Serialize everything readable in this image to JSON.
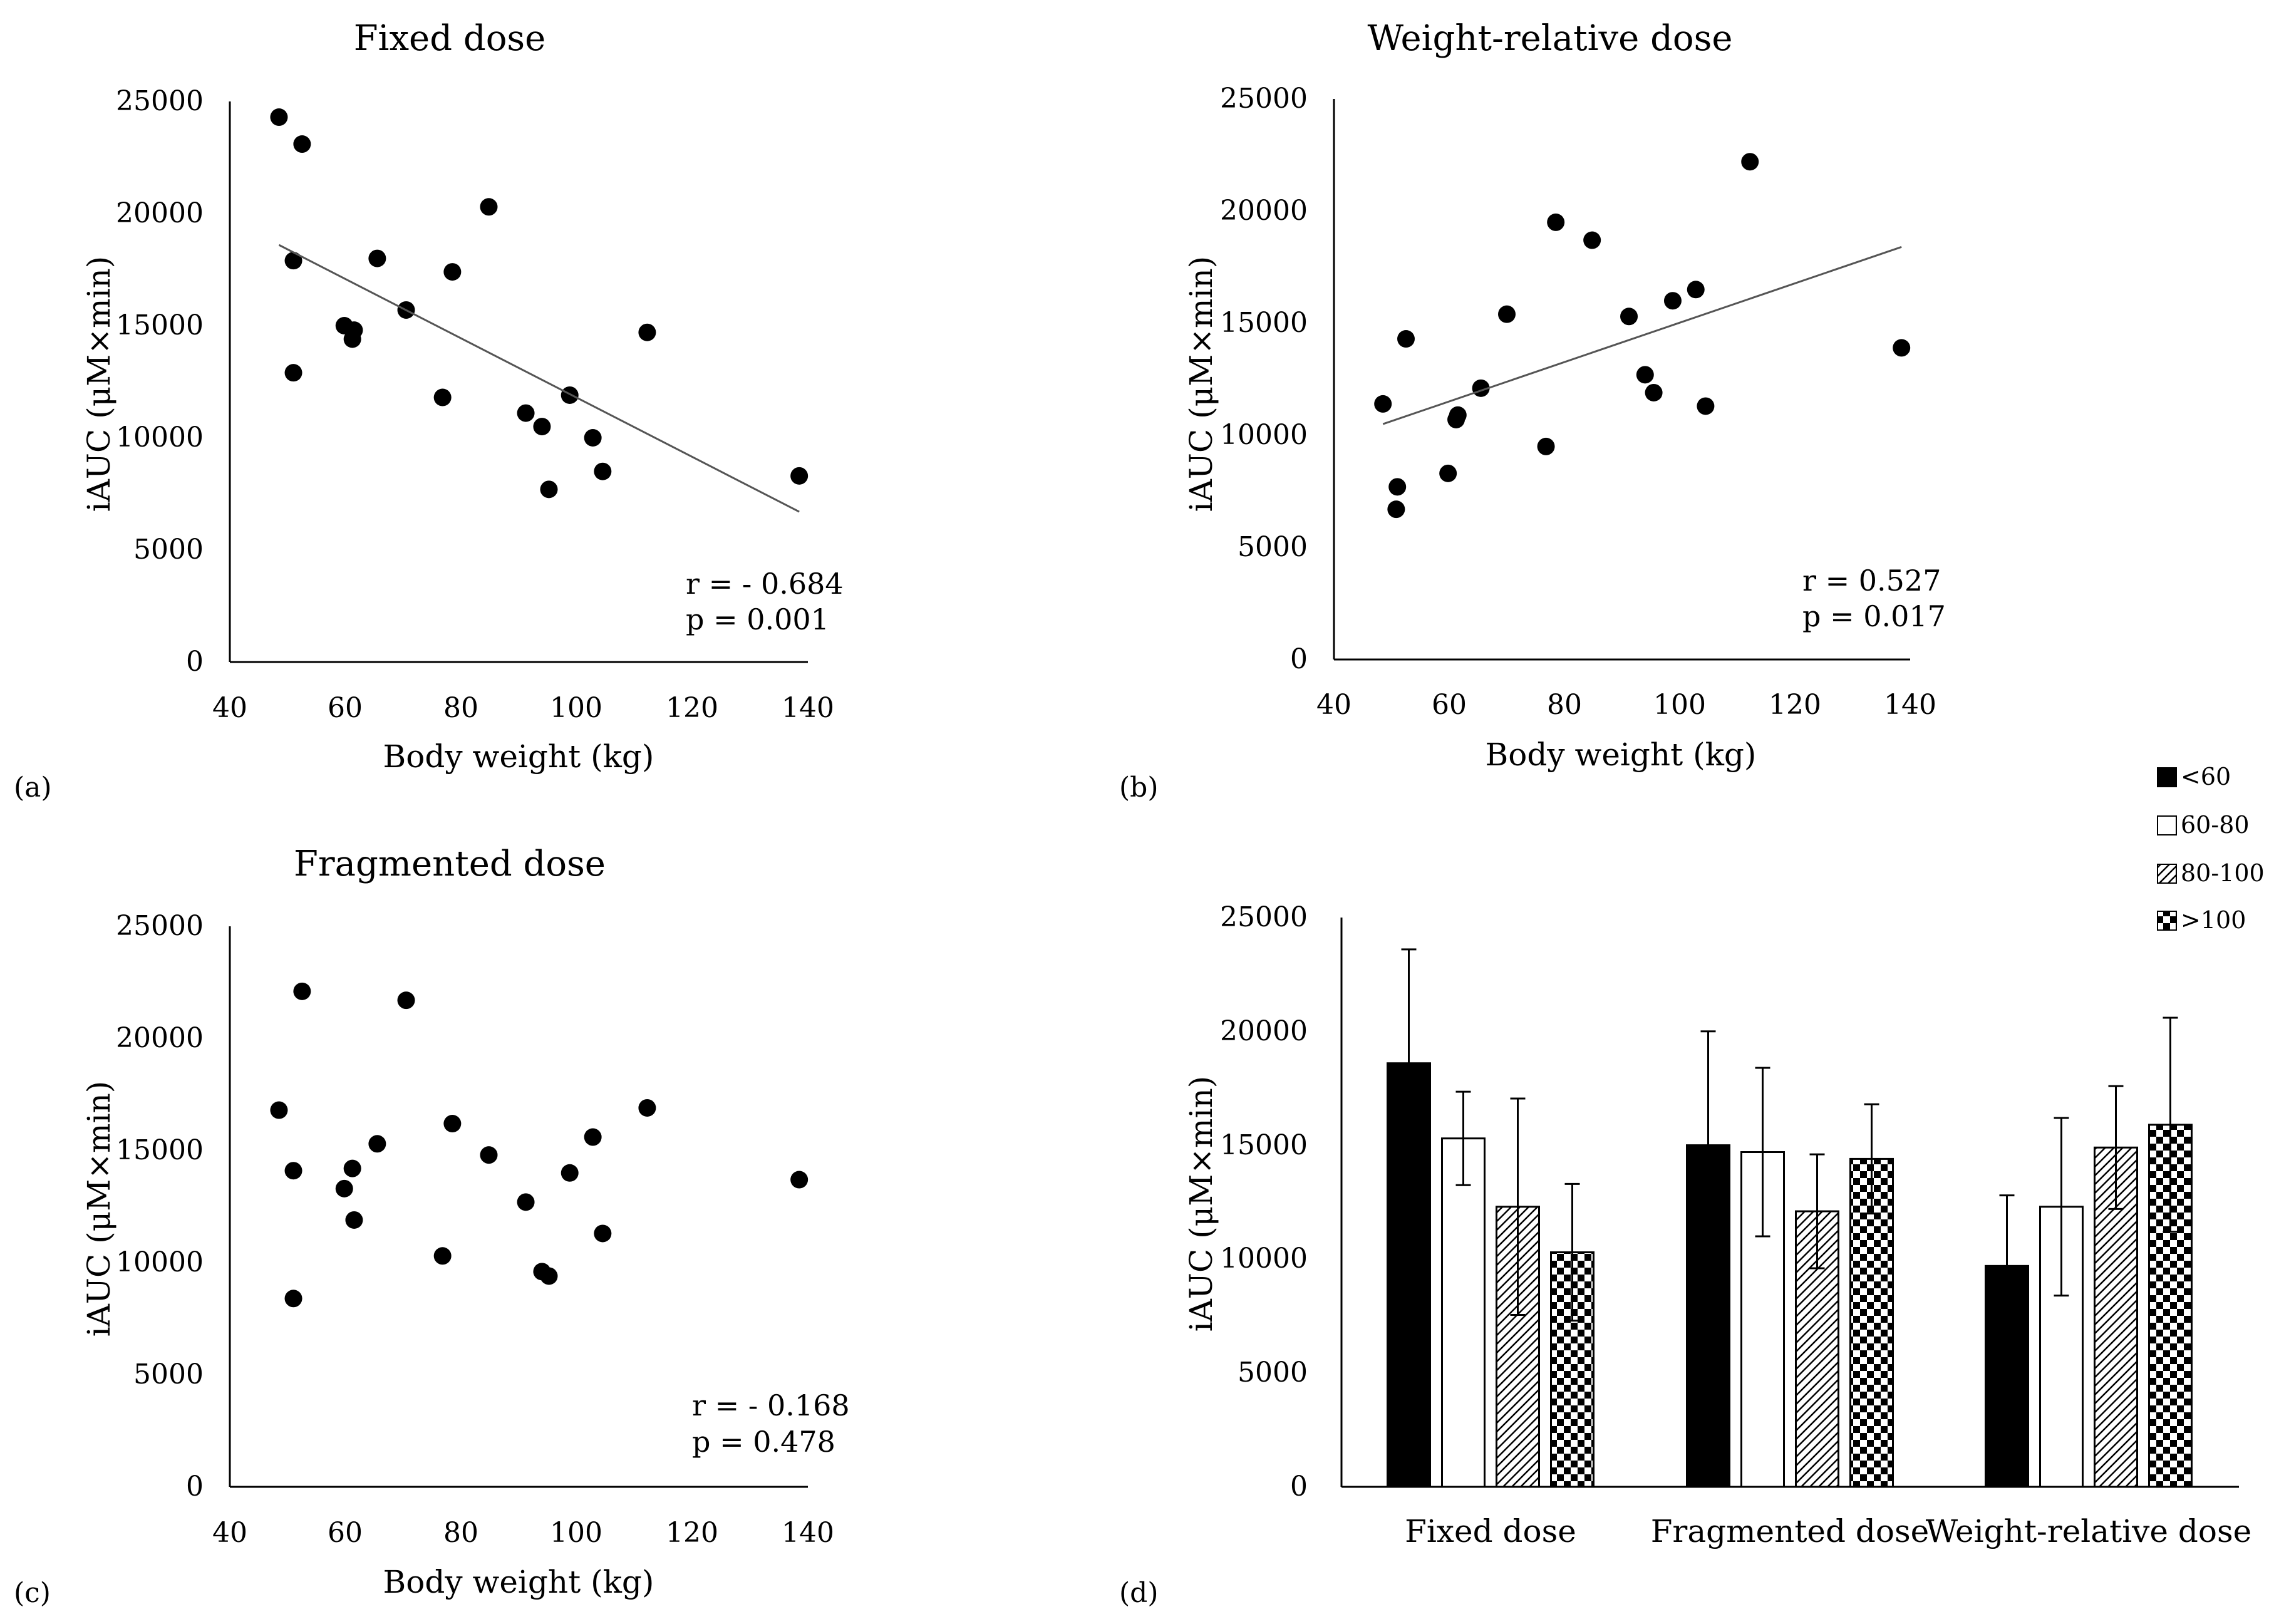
{
  "chart_data": [
    {
      "panel": "(a)",
      "type": "scatter",
      "title": "Fixed dose",
      "xlabel": "Body weight (kg)",
      "ylabel": "iAUC (μM×min)",
      "xlim": [
        40,
        140
      ],
      "ylim": [
        0,
        25000
      ],
      "xticks": [
        "40",
        "60",
        "80",
        "100",
        "120",
        "140"
      ],
      "yticks": [
        "0",
        "5000",
        "10000",
        "15000",
        "20000",
        "25000"
      ],
      "points": [
        {
          "x": 48.5,
          "y": 24300
        },
        {
          "x": 52.5,
          "y": 23100
        },
        {
          "x": 51.0,
          "y": 17900
        },
        {
          "x": 51.0,
          "y": 12900
        },
        {
          "x": 59.8,
          "y": 15000
        },
        {
          "x": 61.5,
          "y": 14800
        },
        {
          "x": 61.2,
          "y": 14400
        },
        {
          "x": 65.5,
          "y": 18000
        },
        {
          "x": 70.5,
          "y": 15700
        },
        {
          "x": 76.8,
          "y": 11800
        },
        {
          "x": 78.5,
          "y": 17400
        },
        {
          "x": 84.8,
          "y": 20300
        },
        {
          "x": 91.2,
          "y": 11100
        },
        {
          "x": 94.0,
          "y": 10500
        },
        {
          "x": 95.2,
          "y": 7700
        },
        {
          "x": 98.8,
          "y": 11900
        },
        {
          "x": 102.8,
          "y": 10000
        },
        {
          "x": 104.5,
          "y": 8500
        },
        {
          "x": 112.2,
          "y": 14700
        },
        {
          "x": 138.5,
          "y": 8300
        }
      ],
      "trendline": {
        "x": [
          48.5,
          138.5
        ],
        "y": [
          18600,
          6700
        ]
      },
      "r_text": "r = - 0.684",
      "p_text": "p = 0.001"
    },
    {
      "panel": "(b)",
      "type": "scatter",
      "title": "Weight-relative dose",
      "xlabel": "Body weight (kg)",
      "ylabel": "iAUC (μM×min)",
      "xlim": [
        40,
        140
      ],
      "ylim": [
        0,
        25000
      ],
      "xticks": [
        "40",
        "60",
        "80",
        "100",
        "120",
        "140"
      ],
      "yticks": [
        "0",
        "5000",
        "10000",
        "15000",
        "20000",
        "25000"
      ],
      "points": [
        {
          "x": 48.5,
          "y": 11400
        },
        {
          "x": 51.0,
          "y": 7700
        },
        {
          "x": 50.8,
          "y": 6700
        },
        {
          "x": 52.5,
          "y": 14300
        },
        {
          "x": 59.8,
          "y": 8300
        },
        {
          "x": 61.2,
          "y": 10700
        },
        {
          "x": 61.5,
          "y": 10900
        },
        {
          "x": 65.5,
          "y": 12100
        },
        {
          "x": 70.0,
          "y": 15400
        },
        {
          "x": 76.8,
          "y": 9500
        },
        {
          "x": 78.5,
          "y": 19500
        },
        {
          "x": 84.8,
          "y": 18700
        },
        {
          "x": 91.2,
          "y": 15300
        },
        {
          "x": 94.0,
          "y": 12700
        },
        {
          "x": 95.5,
          "y": 11900
        },
        {
          "x": 98.8,
          "y": 16000
        },
        {
          "x": 102.8,
          "y": 16500
        },
        {
          "x": 104.5,
          "y": 11300
        },
        {
          "x": 112.2,
          "y": 22200
        },
        {
          "x": 138.5,
          "y": 13900
        }
      ],
      "trendline": {
        "x": [
          48.5,
          138.5
        ],
        "y": [
          10500,
          18400
        ]
      },
      "r_text": "r = 0.527",
      "p_text": "p = 0.017"
    },
    {
      "panel": "(c)",
      "type": "scatter",
      "title": "Fragmented dose",
      "xlabel": "Body weight (kg)",
      "ylabel": "iAUC (μM×min)",
      "xlim": [
        40,
        140
      ],
      "ylim": [
        0,
        25000
      ],
      "xticks": [
        "40",
        "60",
        "80",
        "100",
        "120",
        "140"
      ],
      "yticks": [
        "0",
        "5000",
        "10000",
        "15000",
        "20000",
        "25000"
      ],
      "points": [
        {
          "x": 48.5,
          "y": 16800
        },
        {
          "x": 52.5,
          "y": 22100
        },
        {
          "x": 51.0,
          "y": 14100
        },
        {
          "x": 51.0,
          "y": 8400
        },
        {
          "x": 59.8,
          "y": 13300
        },
        {
          "x": 61.2,
          "y": 14200
        },
        {
          "x": 61.5,
          "y": 11900
        },
        {
          "x": 65.5,
          "y": 15300
        },
        {
          "x": 70.5,
          "y": 21700
        },
        {
          "x": 76.8,
          "y": 10300
        },
        {
          "x": 78.5,
          "y": 16200
        },
        {
          "x": 84.8,
          "y": 14800
        },
        {
          "x": 91.2,
          "y": 12700
        },
        {
          "x": 94.0,
          "y": 9600
        },
        {
          "x": 95.2,
          "y": 9400
        },
        {
          "x": 98.8,
          "y": 14000
        },
        {
          "x": 102.8,
          "y": 15600
        },
        {
          "x": 104.5,
          "y": 11300
        },
        {
          "x": 112.2,
          "y": 16900
        },
        {
          "x": 138.5,
          "y": 13700
        }
      ],
      "r_text": "r = - 0.168",
      "p_text": "p = 0.478"
    },
    {
      "panel": "(d)",
      "type": "bar",
      "ylabel": "iAUC (μM×min)",
      "ylim": [
        0,
        25000
      ],
      "yticks": [
        "0",
        "5000",
        "10000",
        "15000",
        "20000",
        "25000"
      ],
      "categories": [
        "Fixed dose",
        "Fragmented dose",
        "Weight-relative dose"
      ],
      "series": [
        {
          "name": "<60",
          "fill": "solid-black",
          "values": [
            18600,
            15000,
            9700
          ],
          "errors": [
            5000,
            5000,
            3100
          ]
        },
        {
          "name": "60-80",
          "fill": "white",
          "values": [
            15300,
            14700,
            12300
          ],
          "errors": [
            2050,
            3700,
            3900
          ]
        },
        {
          "name": "80-100",
          "fill": "diagonal-hatch",
          "values": [
            12300,
            12100,
            14900
          ],
          "errors": [
            4750,
            2500,
            2700
          ]
        },
        {
          "name": ">100",
          "fill": "checkerboard",
          "values": [
            10300,
            14400,
            15900
          ],
          "errors": [
            3000,
            2400,
            4700
          ]
        }
      ]
    }
  ]
}
